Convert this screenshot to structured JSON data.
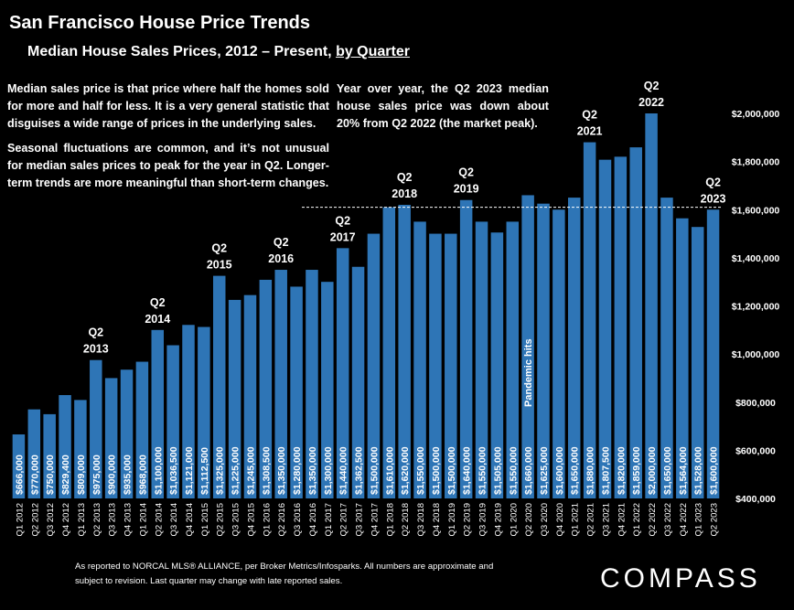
{
  "header": {
    "title": "San Francisco House Price Trends",
    "subtitle_main": "Median House Sales Prices, 2012 – Present, ",
    "subtitle_link": "by Quarter"
  },
  "notes": {
    "left_p1": "Median sales price is that price where half the homes sold for more and half for less. It is a very general statistic that disguises a wide range of prices in the underlying sales.",
    "left_p2": "Seasonal fluctuations are common, and it’s not unusual for median sales prices to peak for the year in Q2. Longer-term trends are more meaningful than short-term changes.",
    "right": "Year over year, the Q2 2023 median house sales price was down about 20% from Q2 2022 (the market peak)."
  },
  "footer": {
    "footnote": "As reported to NORCAL MLS® ALLIANCE, per Broker Metrics/Infosparks. All numbers are approximate and subject to revision. Last quarter may change with late reported sales.",
    "logo": "COMPASS"
  },
  "colors": {
    "bar": "#2E75B6",
    "background": "#000000",
    "text": "#FFFFFF"
  },
  "chart_data": {
    "type": "bar",
    "categories": [
      "Q1 2012",
      "Q2 2012",
      "Q3 2012",
      "Q4 2012",
      "Q1 2013",
      "Q2 2013",
      "Q3 2013",
      "Q4 2013",
      "Q1 2014",
      "Q2 2014",
      "Q3 2014",
      "Q4 2014",
      "Q1 2015",
      "Q2 2015",
      "Q3 2015",
      "Q4 2015",
      "Q1 2016",
      "Q2 2016",
      "Q3 2016",
      "Q4 2016",
      "Q1 2017",
      "Q2 2017",
      "Q3 2017",
      "Q4 2017",
      "Q1 2018",
      "Q2 2018",
      "Q3 2018",
      "Q4 2018",
      "Q1 2019",
      "Q2 2019",
      "Q3 2019",
      "Q4 2019",
      "Q1 2020",
      "Q2 2020",
      "Q3 2020",
      "Q4 2020",
      "Q1 2021",
      "Q2 2021",
      "Q3 2021",
      "Q4 2021",
      "Q1 2022",
      "Q2 2022",
      "Q3 2022",
      "Q4 2022",
      "Q1 2023",
      "Q2 2023"
    ],
    "values": [
      666000,
      770000,
      750000,
      829400,
      809000,
      975000,
      900000,
      935000,
      968000,
      1100000,
      1036500,
      1121000,
      1112500,
      1325000,
      1225000,
      1245000,
      1308500,
      1350000,
      1280000,
      1350000,
      1300000,
      1440000,
      1362500,
      1500000,
      1610000,
      1620000,
      1550000,
      1500000,
      1500000,
      1640000,
      1550000,
      1505000,
      1550000,
      1660000,
      1625000,
      1600000,
      1650000,
      1880000,
      1807500,
      1820000,
      1859000,
      2000000,
      1650000,
      1564000,
      1528000,
      1600000
    ],
    "value_labels": [
      "$666,000",
      "$770,000",
      "$750,000",
      "$829,400",
      "$809,000",
      "$975,000",
      "$900,000",
      "$935,000",
      "$968,000",
      "$1,100,000",
      "$1,036,500",
      "$1,121,000",
      "$1,112,500",
      "$1,325,000",
      "$1,225,000",
      "$1,245,000",
      "$1,308,500",
      "$1,350,000",
      "$1,280,000",
      "$1,350,000",
      "$1,300,000",
      "$1,440,000",
      "$1,362,500",
      "$1,500,000",
      "$1,610,000",
      "$1,620,000",
      "$1,550,000",
      "$1,500,000",
      "$1,500,000",
      "$1,640,000",
      "$1,550,000",
      "$1,505,000",
      "$1,550,000",
      "$1,660,000",
      "$1,625,000",
      "$1,600,000",
      "$1,650,000",
      "$1,880,000",
      "$1,807,500",
      "$1,820,000",
      "$1,859,000",
      "$2,000,000",
      "$1,650,000",
      "$1,564,000",
      "$1,528,000",
      "$1,600,000"
    ],
    "ylim": [
      400000,
      2100000
    ],
    "yticks": [
      400000,
      600000,
      800000,
      1000000,
      1200000,
      1400000,
      1600000,
      1800000,
      2000000
    ],
    "ytick_labels": [
      "$400,000",
      "$600,000",
      "$800,000",
      "$1,000,000",
      "$1,200,000",
      "$1,400,000",
      "$1,600,000",
      "$1,800,000",
      "$2,000,000"
    ],
    "y_axis_side": "right",
    "grid": false,
    "reference_line": {
      "value": 1610000,
      "style": "dashed"
    },
    "callouts": [
      {
        "index": 5,
        "line1": "Q2",
        "line2": "2013"
      },
      {
        "index": 9,
        "line1": "Q2",
        "line2": "2014"
      },
      {
        "index": 13,
        "line1": "Q2",
        "line2": "2015"
      },
      {
        "index": 17,
        "line1": "Q2",
        "line2": "2016"
      },
      {
        "index": 21,
        "line1": "Q2",
        "line2": "2017"
      },
      {
        "index": 25,
        "line1": "Q2",
        "line2": "2018"
      },
      {
        "index": 29,
        "line1": "Q2",
        "line2": "2019"
      },
      {
        "index": 37,
        "line1": "Q2",
        "line2": "2021"
      },
      {
        "index": 41,
        "line1": "Q2",
        "line2": "2022"
      },
      {
        "index": 45,
        "line1": "Q2",
        "line2": "2023"
      }
    ],
    "annotation": {
      "index": 33,
      "text": "Pandemic hits"
    }
  }
}
